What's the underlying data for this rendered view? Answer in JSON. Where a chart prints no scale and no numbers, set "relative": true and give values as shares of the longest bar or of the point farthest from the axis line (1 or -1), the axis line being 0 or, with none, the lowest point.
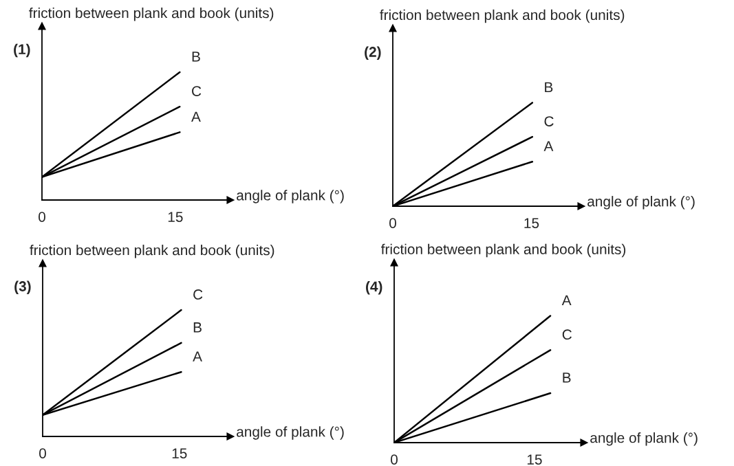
{
  "chart_data": [
    {
      "type": "line",
      "title": "(1)",
      "xlabel": "angle of plank (°)",
      "ylabel": "friction between plank and book (units)",
      "relative": true,
      "xlim": [
        0,
        21.2
      ],
      "xticks": [
        0,
        15
      ],
      "grid": false,
      "legend": false,
      "series": [
        {
          "name": "B",
          "color": "#000000",
          "x": [
            0,
            15.5
          ],
          "values": [
            0.18,
            1
          ]
        },
        {
          "name": "C",
          "color": "#000000",
          "x": [
            0,
            15.5
          ],
          "values": [
            0.18,
            0.73
          ]
        },
        {
          "name": "A",
          "color": "#000000",
          "x": [
            0,
            15.5
          ],
          "values": [
            0.18,
            0.53
          ]
        }
      ]
    },
    {
      "type": "line",
      "title": "(2)",
      "xlabel": "angle of plank (°)",
      "ylabel": "friction between plank and book (units)",
      "relative": true,
      "xlim": [
        0,
        20.4
      ],
      "xticks": [
        0,
        15
      ],
      "grid": false,
      "legend": false,
      "series": [
        {
          "name": "B",
          "color": "#000000",
          "x": [
            0,
            15.1
          ],
          "values": [
            0,
            1
          ]
        },
        {
          "name": "C",
          "color": "#000000",
          "x": [
            0,
            15.1
          ],
          "values": [
            0,
            0.67
          ]
        },
        {
          "name": "A",
          "color": "#000000",
          "x": [
            0,
            15.1
          ],
          "values": [
            0,
            0.43
          ]
        }
      ]
    },
    {
      "type": "line",
      "title": "(3)",
      "xlabel": "angle of plank (°)",
      "ylabel": "friction between plank and book (units)",
      "relative": true,
      "xlim": [
        0,
        20.6
      ],
      "xticks": [
        0,
        15
      ],
      "grid": false,
      "legend": false,
      "series": [
        {
          "name": "C",
          "color": "#000000",
          "x": [
            0,
            15.2
          ],
          "values": [
            0.17,
            1
          ]
        },
        {
          "name": "B",
          "color": "#000000",
          "x": [
            0,
            15.2
          ],
          "values": [
            0.17,
            0.74
          ]
        },
        {
          "name": "A",
          "color": "#000000",
          "x": [
            0,
            15.2
          ],
          "values": [
            0.17,
            0.51
          ]
        }
      ]
    },
    {
      "type": "line",
      "title": "(4)",
      "xlabel": "angle of plank (°)",
      "ylabel": "friction between plank and book (units)",
      "relative": true,
      "xlim": [
        0,
        20.3
      ],
      "xticks": [
        0,
        15
      ],
      "grid": false,
      "legend": false,
      "series": [
        {
          "name": "A",
          "color": "#000000",
          "x": [
            0,
            16.7
          ],
          "values": [
            0,
            1
          ]
        },
        {
          "name": "C",
          "color": "#000000",
          "x": [
            0,
            16.7
          ],
          "values": [
            0,
            0.73
          ]
        },
        {
          "name": "B",
          "color": "#000000",
          "x": [
            0,
            16.7
          ],
          "values": [
            0,
            0.39
          ]
        }
      ]
    }
  ]
}
